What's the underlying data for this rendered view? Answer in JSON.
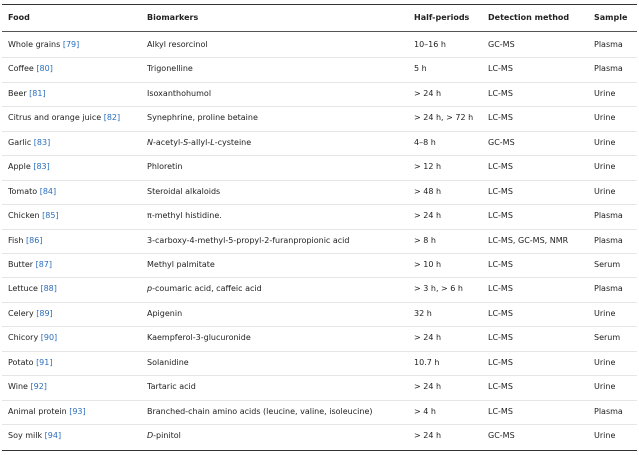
{
  "table": {
    "header": [
      "Food",
      "Biomarkers",
      "Half-periods",
      "Detection method",
      "Sample"
    ],
    "rows": [
      {
        "food": "Whole grains",
        "ref": "[79]",
        "biomarker": [
          {
            "text": "Alkyl resorcinol"
          }
        ],
        "half_period": "10–16 h",
        "method": "GC-MS",
        "sample": "Plasma"
      },
      {
        "food": "Coffee",
        "ref": "[80]",
        "biomarker": [
          {
            "text": "Trigonelline"
          }
        ],
        "half_period": "5 h",
        "method": "LC-MS",
        "sample": "Plasma"
      },
      {
        "food": "Beer",
        "ref": "[81]",
        "biomarker": [
          {
            "text": "Isoxanthohumol"
          }
        ],
        "half_period": "> 24 h",
        "method": "LC-MS",
        "sample": "Urine"
      },
      {
        "food": "Citrus and orange juice",
        "ref": "[82]",
        "biomarker": [
          {
            "text": "Synephrine, proline betaine"
          }
        ],
        "half_period": "> 24 h, > 72 h",
        "method": "LC-MS",
        "sample": "Urine"
      },
      {
        "food": "Garlic",
        "ref": "[83]",
        "biomarker": [
          {
            "text": "N",
            "italic": true
          },
          {
            "text": "-acetyl-"
          },
          {
            "text": "S",
            "italic": true
          },
          {
            "text": "-allyl-"
          },
          {
            "text": "L",
            "italic": true
          },
          {
            "text": "-cysteine"
          }
        ],
        "half_period": "4–8 h",
        "method": "GC-MS",
        "sample": "Urine"
      },
      {
        "food": "Apple",
        "ref": "[83]",
        "biomarker": [
          {
            "text": "Phloretin"
          }
        ],
        "half_period": "> 12 h",
        "method": "LC-MS",
        "sample": "Urine"
      },
      {
        "food": "Tomato",
        "ref": "[84]",
        "biomarker": [
          {
            "text": "Steroidal alkaloids"
          }
        ],
        "half_period": "> 48 h",
        "method": "LC-MS",
        "sample": "Urine"
      },
      {
        "food": "Chicken",
        "ref": "[85]",
        "biomarker": [
          {
            "text": "π-methyl histidine."
          }
        ],
        "half_period": "> 24 h",
        "method": "LC-MS",
        "sample": "Plasma"
      },
      {
        "food": "Fish",
        "ref": "[86]",
        "biomarker": [
          {
            "text": "3-carboxy-4-methyl-5-propyl-2-furanpropionic acid"
          }
        ],
        "half_period": "> 8 h",
        "method": "LC-MS, GC-MS, NMR",
        "sample": "Plasma"
      },
      {
        "food": "Butter",
        "ref": "[87]",
        "biomarker": [
          {
            "text": "Methyl palmitate"
          }
        ],
        "half_period": "> 10 h",
        "method": "LC-MS",
        "sample": "Serum"
      },
      {
        "food": "Lettuce",
        "ref": "[88]",
        "biomarker": [
          {
            "text": "p",
            "italic": true
          },
          {
            "text": "-coumaric acid, caffeic acid"
          }
        ],
        "half_period": "> 3 h, > 6 h",
        "method": "LC-MS",
        "sample": "Plasma"
      },
      {
        "food": "Celery",
        "ref": "[89]",
        "biomarker": [
          {
            "text": "Apigenin"
          }
        ],
        "half_period": "32 h",
        "method": "LC-MS",
        "sample": "Urine"
      },
      {
        "food": "Chicory",
        "ref": "[90]",
        "biomarker": [
          {
            "text": "Kaempferol-3-glucuronide"
          }
        ],
        "half_period": "> 24 h",
        "method": "LC-MS",
        "sample": "Serum"
      },
      {
        "food": "Potato",
        "ref": "[91]",
        "biomarker": [
          {
            "text": "Solanidine"
          }
        ],
        "half_period": "10.7 h",
        "method": "LC-MS",
        "sample": "Urine"
      },
      {
        "food": "Wine",
        "ref": "[92]",
        "biomarker": [
          {
            "text": "Tartaric acid"
          }
        ],
        "half_period": "> 24 h",
        "method": "LC-MS",
        "sample": "Urine"
      },
      {
        "food": "Animal protein",
        "ref": "[93]",
        "biomarker": [
          {
            "text": "Branched-chain amino acids (leucine, valine, isoleucine)"
          }
        ],
        "half_period": "> 4 h",
        "method": "LC-MS",
        "sample": "Plasma"
      },
      {
        "food": "Soy milk",
        "ref": "[94]",
        "biomarker": [
          {
            "text": "D",
            "italic": true
          },
          {
            "text": "-pinitol"
          }
        ],
        "half_period": "> 24 h",
        "method": "GC-MS",
        "sample": "Urine"
      }
    ]
  }
}
